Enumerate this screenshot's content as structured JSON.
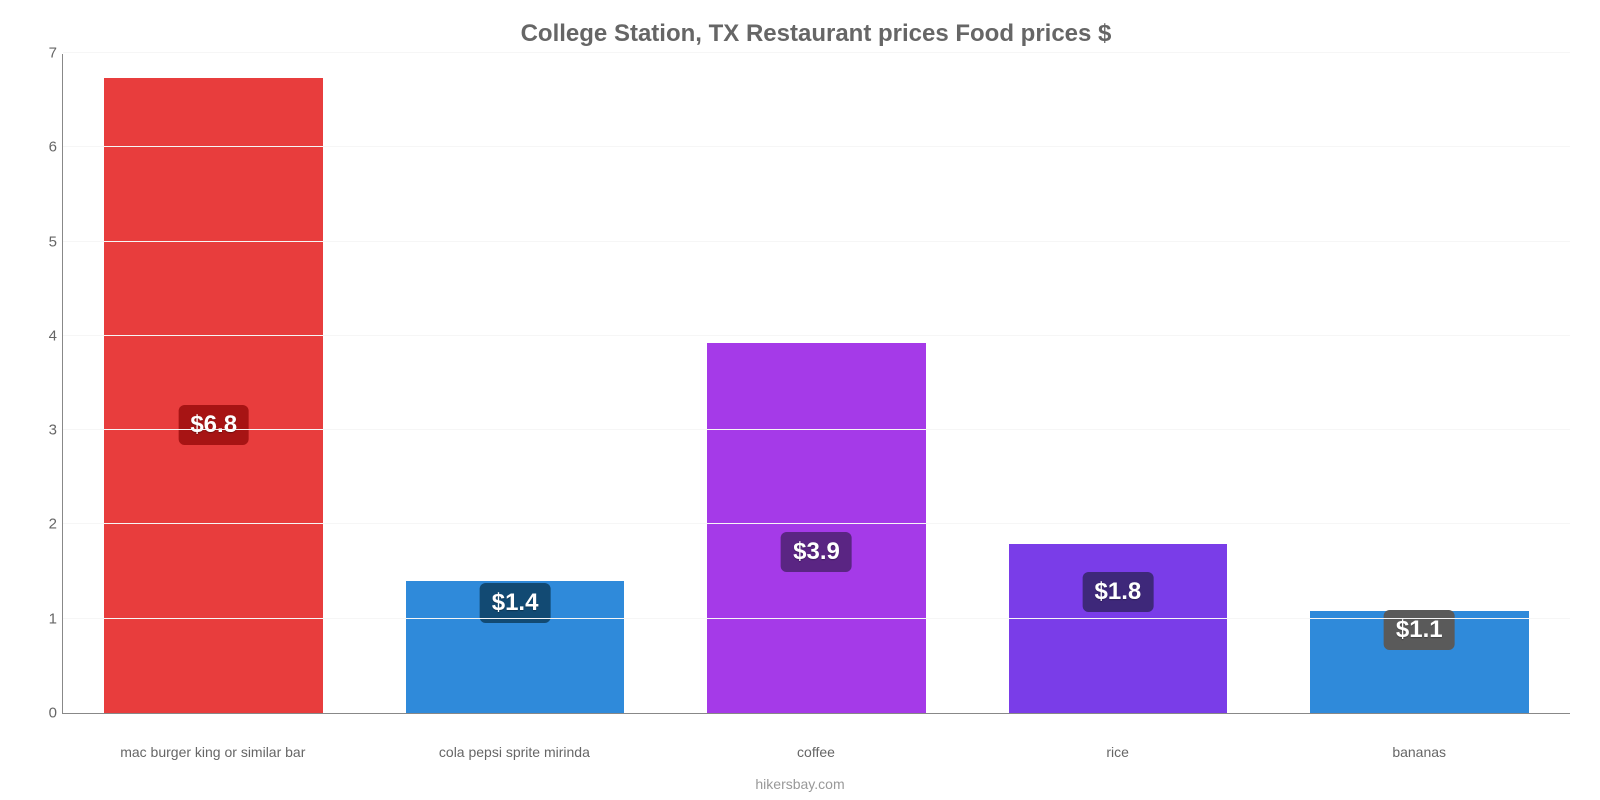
{
  "chart": {
    "type": "bar",
    "title": "College Station, TX Restaurant prices Food prices $",
    "title_color": "#666666",
    "title_fontsize": 24,
    "background_color": "#ffffff",
    "grid_color": "#f6f6f6",
    "axis_color": "#888888",
    "tick_color": "#666666",
    "tick_fontsize": 15,
    "xlabel_fontsize": 14,
    "ylim": [
      0,
      7
    ],
    "ytick_step": 1,
    "bar_width_pct": 14.5,
    "bars": [
      {
        "category": "mac burger king or similar bar",
        "value": 6.75,
        "label": "$6.8",
        "color": "#e83d3d",
        "badge_bg": "#a71414",
        "badge_y_frac": 0.45
      },
      {
        "category": "cola pepsi sprite mirinda",
        "value": 1.4,
        "label": "$1.4",
        "color": "#2f8ada",
        "badge_bg": "#124a73",
        "badge_y_frac": 0.82
      },
      {
        "category": "coffee",
        "value": 3.93,
        "label": "$3.9",
        "color": "#a53ae8",
        "badge_bg": "#5a2583",
        "badge_y_frac": 0.43
      },
      {
        "category": "rice",
        "value": 1.8,
        "label": "$1.8",
        "color": "#7a3de8",
        "badge_bg": "#3e287a",
        "badge_y_frac": 0.7
      },
      {
        "category": "bananas",
        "value": 1.08,
        "label": "$1.1",
        "color": "#2f8ada",
        "badge_bg": "#5a5a5a",
        "badge_y_frac": 0.8
      }
    ],
    "footer": "hikersbay.com",
    "footer_color": "#999999"
  }
}
